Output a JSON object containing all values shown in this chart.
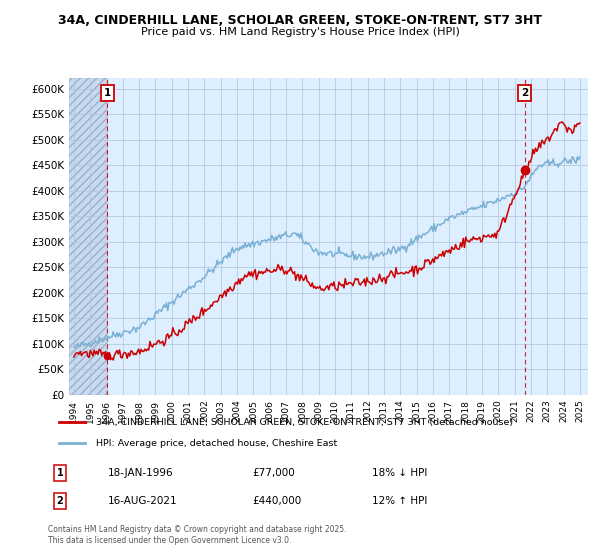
{
  "title_line1": "34A, CINDERHILL LANE, SCHOLAR GREEN, STOKE-ON-TRENT, ST7 3HT",
  "title_line2": "Price paid vs. HM Land Registry's House Price Index (HPI)",
  "ylim": [
    0,
    620000
  ],
  "yticks": [
    0,
    50000,
    100000,
    150000,
    200000,
    250000,
    300000,
    350000,
    400000,
    450000,
    500000,
    550000,
    600000
  ],
  "ytick_labels": [
    "£0",
    "£50K",
    "£100K",
    "£150K",
    "£200K",
    "£250K",
    "£300K",
    "£350K",
    "£400K",
    "£450K",
    "£500K",
    "£550K",
    "£600K"
  ],
  "xlim_start": 1993.7,
  "xlim_end": 2025.5,
  "xtick_years": [
    1994,
    1995,
    1996,
    1997,
    1998,
    1999,
    2000,
    2001,
    2002,
    2003,
    2004,
    2005,
    2006,
    2007,
    2008,
    2009,
    2010,
    2011,
    2012,
    2013,
    2014,
    2015,
    2016,
    2017,
    2018,
    2019,
    2020,
    2021,
    2022,
    2023,
    2024,
    2025
  ],
  "point1_x": 1996.05,
  "point1_y": 77000,
  "point1_label": "1",
  "point2_x": 2021.62,
  "point2_y": 440000,
  "point2_label": "2",
  "legend_line1": "34A, CINDERHILL LANE, SCHOLAR GREEN, STOKE-ON-TRENT, ST7 3HT (detached house)",
  "legend_line2": "HPI: Average price, detached house, Cheshire East",
  "ann1_box": "1",
  "ann1_date": "18-JAN-1996",
  "ann1_price": "£77,000",
  "ann1_hpi": "18% ↓ HPI",
  "ann2_box": "2",
  "ann2_date": "16-AUG-2021",
  "ann2_price": "£440,000",
  "ann2_hpi": "12% ↑ HPI",
  "footer": "Contains HM Land Registry data © Crown copyright and database right 2025.\nThis data is licensed under the Open Government Licence v3.0.",
  "red_color": "#cc0000",
  "blue_color": "#7ab0d4",
  "bg_color": "#ddeeff",
  "grid_color": "#b0c4d8",
  "hatch_facecolor": "#c8daf0"
}
